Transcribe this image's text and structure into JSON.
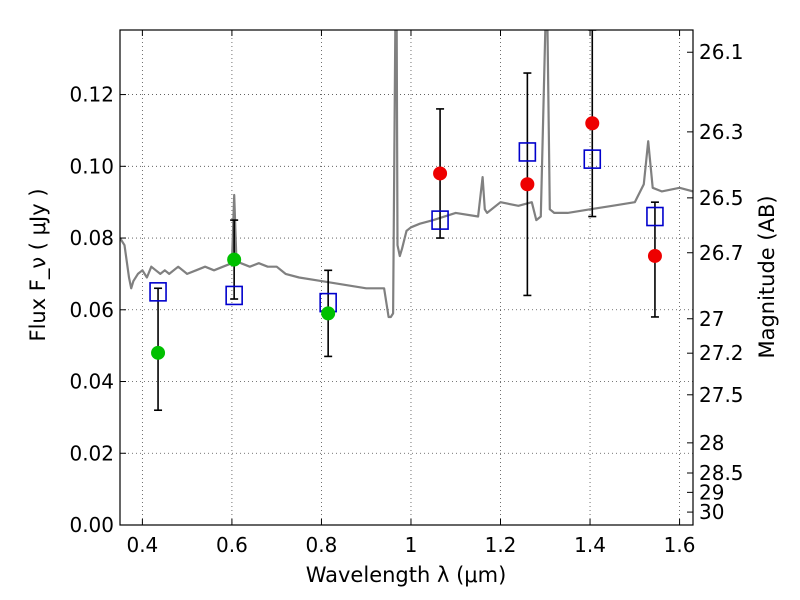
{
  "chart_data": {
    "type": "scatter",
    "xlabel": "Wavelength  λ (μm)",
    "ylabel": "Flux  F_ν  ( μJy )",
    "ylabel_right": "Magnitude (AB)",
    "xlim": [
      0.35,
      1.63
    ],
    "ylim": [
      0.0,
      0.138
    ],
    "grid": true,
    "x_ticks": [
      0.4,
      0.6,
      0.8,
      1.0,
      1.2,
      1.4,
      1.6
    ],
    "x_tick_labels": [
      "0.4",
      "0.6",
      "0.8",
      "1",
      "1.2",
      "1.4",
      "1.6"
    ],
    "y_ticks": [
      0.0,
      0.02,
      0.04,
      0.06,
      0.08,
      0.1,
      0.12
    ],
    "y_tick_labels": [
      "0.00",
      "0.02",
      "0.04",
      "0.06",
      "0.08",
      "0.10",
      "0.12"
    ],
    "right_ticks": [
      {
        "label": "26.1",
        "flux": 0.1318
      },
      {
        "label": "26.3",
        "flux": 0.1096
      },
      {
        "label": "26.5",
        "flux": 0.0912
      },
      {
        "label": "26.7",
        "flux": 0.0759
      },
      {
        "label": "27",
        "flux": 0.0575
      },
      {
        "label": "27.2",
        "flux": 0.0479
      },
      {
        "label": "27.5",
        "flux": 0.0363
      },
      {
        "label": "28",
        "flux": 0.0229
      },
      {
        "label": "28.5",
        "flux": 0.0145
      },
      {
        "label": "29",
        "flux": 0.0091
      },
      {
        "label": "30",
        "flux": 0.0036
      }
    ],
    "series": [
      {
        "kind": "line",
        "color": "#808080",
        "x": [
          0.35,
          0.36,
          0.37,
          0.375,
          0.38,
          0.39,
          0.4,
          0.41,
          0.42,
          0.43,
          0.44,
          0.45,
          0.46,
          0.48,
          0.5,
          0.52,
          0.54,
          0.56,
          0.58,
          0.6,
          0.605,
          0.61,
          0.62,
          0.64,
          0.66,
          0.68,
          0.7,
          0.72,
          0.75,
          0.8,
          0.85,
          0.9,
          0.94,
          0.95,
          0.955,
          0.96,
          0.965,
          0.968,
          0.97,
          0.975,
          0.98,
          0.99,
          1.0,
          1.02,
          1.05,
          1.1,
          1.15,
          1.16,
          1.165,
          1.17,
          1.2,
          1.24,
          1.27,
          1.28,
          1.29,
          1.3,
          1.305,
          1.31,
          1.32,
          1.33,
          1.35,
          1.4,
          1.45,
          1.5,
          1.52,
          1.53,
          1.54,
          1.56,
          1.6,
          1.63
        ],
        "y": [
          0.08,
          0.078,
          0.069,
          0.066,
          0.068,
          0.07,
          0.071,
          0.069,
          0.072,
          0.071,
          0.07,
          0.071,
          0.07,
          0.072,
          0.07,
          0.071,
          0.072,
          0.071,
          0.072,
          0.073,
          0.092,
          0.074,
          0.073,
          0.072,
          0.073,
          0.072,
          0.072,
          0.07,
          0.069,
          0.068,
          0.067,
          0.066,
          0.066,
          0.058,
          0.058,
          0.059,
          0.138,
          0.138,
          0.078,
          0.075,
          0.077,
          0.082,
          0.083,
          0.084,
          0.085,
          0.087,
          0.086,
          0.097,
          0.088,
          0.087,
          0.09,
          0.089,
          0.09,
          0.085,
          0.086,
          0.138,
          0.138,
          0.088,
          0.087,
          0.087,
          0.087,
          0.088,
          0.089,
          0.09,
          0.095,
          0.107,
          0.094,
          0.093,
          0.094,
          0.093
        ]
      },
      {
        "kind": "errorbar",
        "color": "#000000",
        "x": [
          0.435,
          0.605,
          0.815,
          1.065,
          1.26,
          1.405,
          1.545
        ],
        "y_low": [
          0.032,
          0.063,
          0.047,
          0.08,
          0.064,
          0.086,
          0.058
        ],
        "y_high": [
          0.066,
          0.085,
          0.071,
          0.116,
          0.126,
          0.138,
          0.09
        ]
      },
      {
        "kind": "marker-square-open",
        "color": "#0000cc",
        "x": [
          0.435,
          0.605,
          0.815,
          1.065,
          1.26,
          1.405,
          1.545
        ],
        "y": [
          0.065,
          0.064,
          0.062,
          0.085,
          0.104,
          0.102,
          0.086
        ]
      },
      {
        "kind": "marker-circle",
        "color": "#00c000",
        "x": [
          0.435,
          0.605,
          0.815
        ],
        "y": [
          0.048,
          0.074,
          0.059
        ]
      },
      {
        "kind": "marker-circle",
        "color": "#ee0000",
        "x": [
          1.065,
          1.26,
          1.405,
          1.545
        ],
        "y": [
          0.098,
          0.095,
          0.112,
          0.075
        ]
      }
    ]
  }
}
